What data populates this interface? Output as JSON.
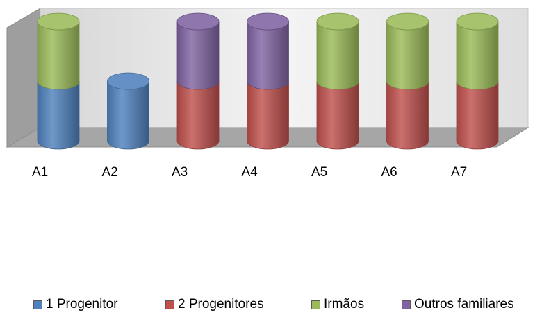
{
  "chart_data": {
    "type": "bar",
    "subtype": "stacked-3d-cylinder",
    "categories": [
      "A1",
      "A2",
      "A3",
      "A4",
      "A5",
      "A6",
      "A7"
    ],
    "series": [
      {
        "name": "1 Progenitor",
        "color": "#4f81bd",
        "values": [
          1,
          1,
          0,
          0,
          0,
          0,
          0
        ]
      },
      {
        "name": "2 Progenitores",
        "color": "#c0504d",
        "values": [
          0,
          0,
          1,
          1,
          1,
          1,
          1
        ]
      },
      {
        "name": "Irmãos",
        "color": "#9bbb59",
        "values": [
          1,
          0,
          0,
          0,
          1,
          1,
          1
        ]
      },
      {
        "name": "Outros familiares",
        "color": "#8064a2",
        "values": [
          0,
          0,
          1,
          1,
          0,
          0,
          0
        ]
      }
    ],
    "ylim": [
      0,
      2
    ],
    "grid": false,
    "legend": "bottom"
  }
}
